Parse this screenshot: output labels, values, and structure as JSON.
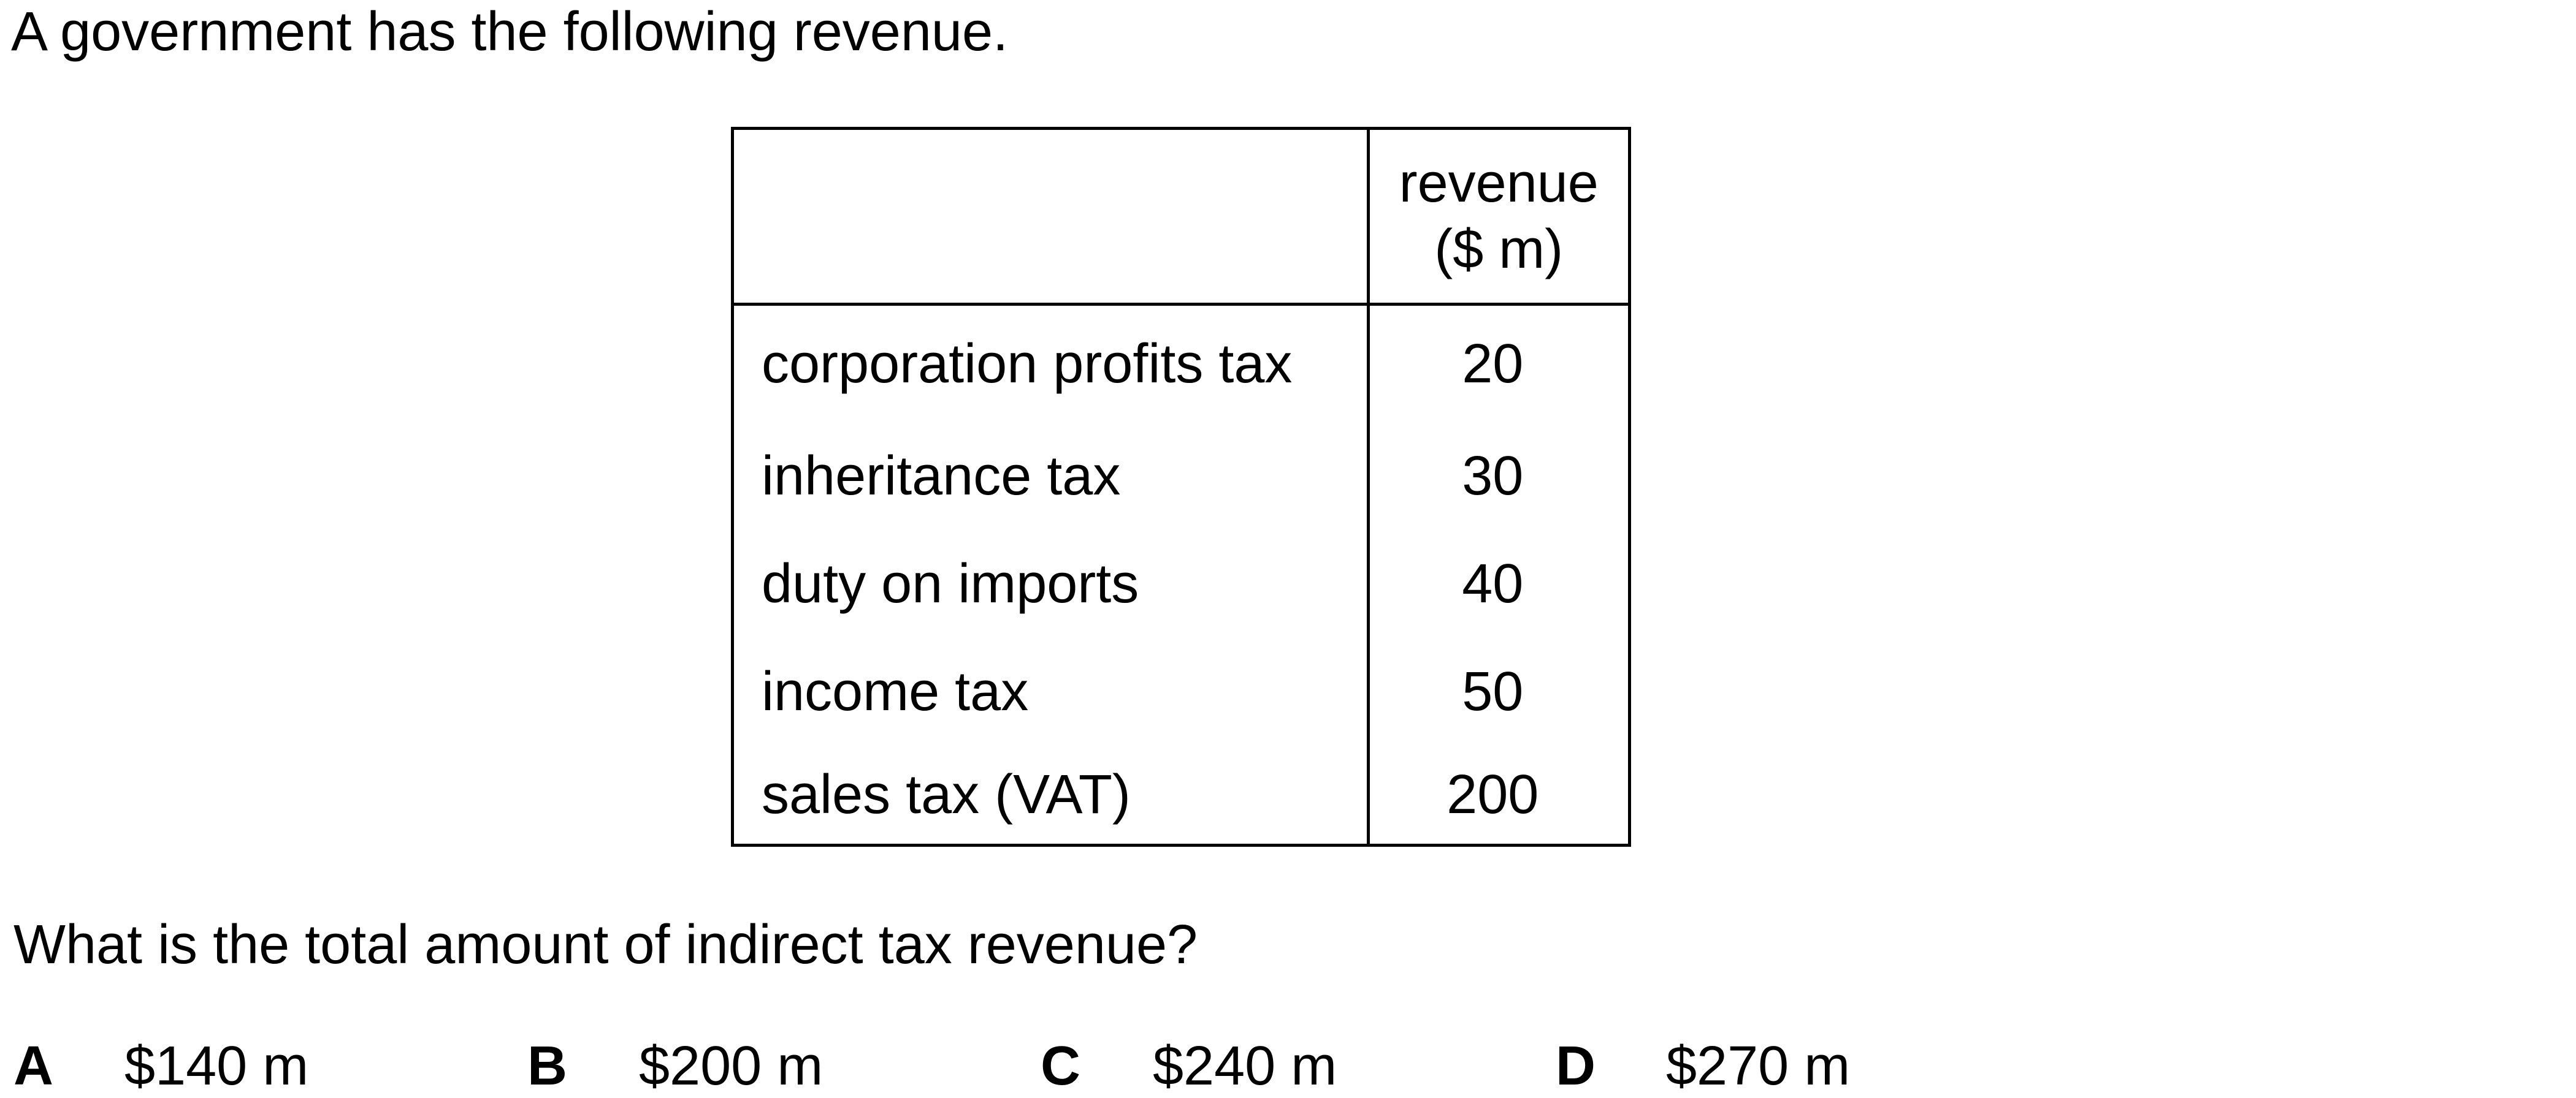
{
  "intro": "A government has the following revenue.",
  "table": {
    "header": {
      "label": "",
      "value_line1": "revenue",
      "value_line2": "($ m)"
    },
    "rows": [
      {
        "label": "corporation profits tax",
        "value": "20"
      },
      {
        "label": "inheritance tax",
        "value": "30"
      },
      {
        "label": "duty on imports",
        "value": "40"
      },
      {
        "label": "income tax",
        "value": "50"
      },
      {
        "label": "sales tax (VAT)",
        "value": "200"
      }
    ]
  },
  "question": "What is the total amount of indirect tax revenue?",
  "options": [
    {
      "letter": "A",
      "text": "$140 m"
    },
    {
      "letter": "B",
      "text": "$200 m"
    },
    {
      "letter": "C",
      "text": "$240 m"
    },
    {
      "letter": "D",
      "text": "$270 m"
    }
  ]
}
